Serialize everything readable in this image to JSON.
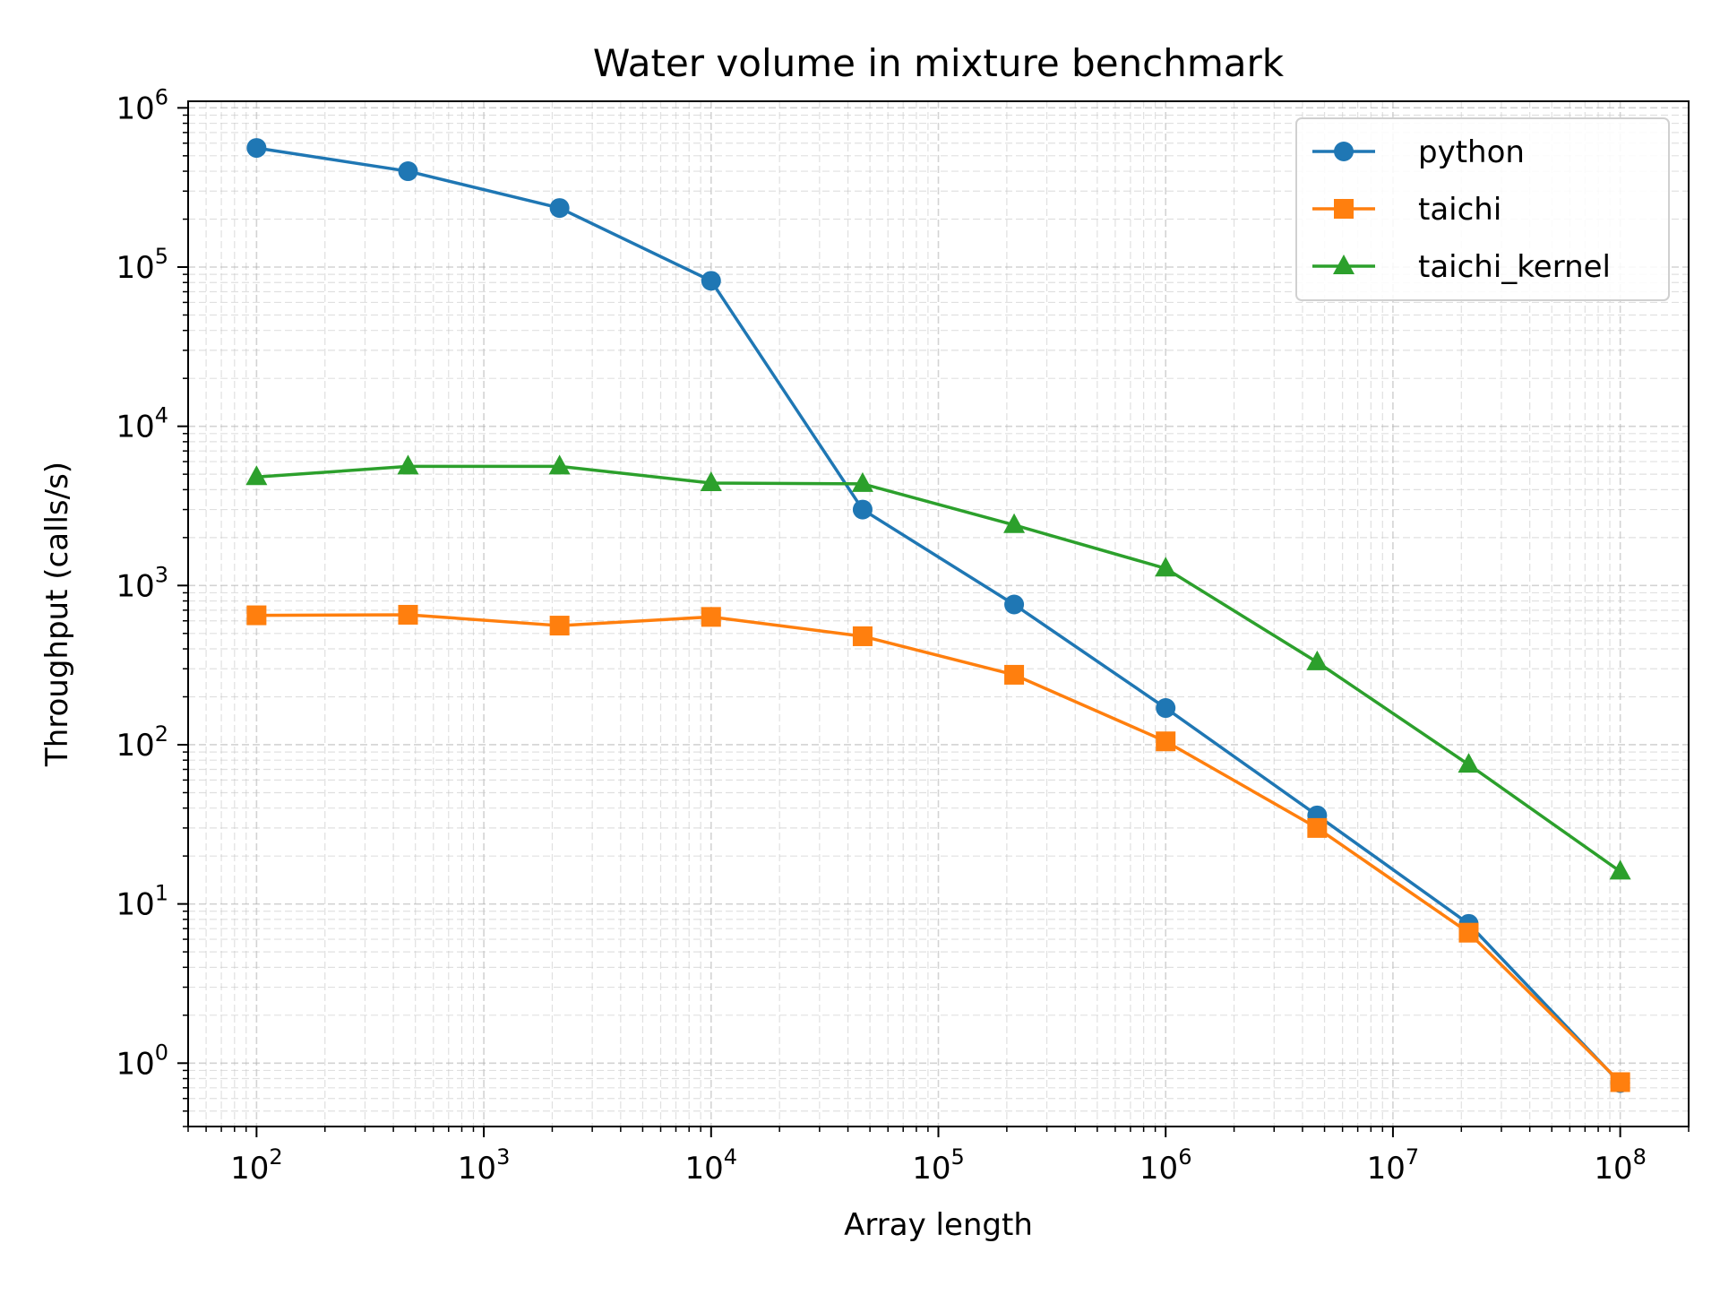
{
  "chart_data": {
    "type": "line",
    "title": "Water volume in mixture benchmark",
    "xlabel": "Array length",
    "ylabel": "Throughput (calls/s)",
    "x_scale": "log",
    "y_scale": "log",
    "xlim": [
      50,
      200000000
    ],
    "ylim": [
      0.4,
      1100000
    ],
    "grid": true,
    "legend_position": "top-right",
    "x": [
      100,
      464,
      2154,
      10000,
      46416,
      215443,
      1000000,
      4641589,
      21544347,
      100000000
    ],
    "series": [
      {
        "name": "python",
        "color": "#1f77b4",
        "marker": "circle",
        "values": [
          560000,
          400000,
          235000,
          82000,
          3000,
          760,
          170,
          36,
          7.5,
          0.75
        ]
      },
      {
        "name": "taichi",
        "color": "#ff7f0e",
        "marker": "square",
        "values": [
          650,
          655,
          560,
          635,
          480,
          275,
          105,
          30,
          6.6,
          0.76
        ]
      },
      {
        "name": "taichi_kernel",
        "color": "#2ca02c",
        "marker": "triangle",
        "values": [
          4800,
          5600,
          5600,
          4400,
          4350,
          2400,
          1280,
          330,
          75,
          16
        ]
      }
    ],
    "x_ticks": [
      {
        "base": "10",
        "exp": "2",
        "value": 100
      },
      {
        "base": "10",
        "exp": "3",
        "value": 1000
      },
      {
        "base": "10",
        "exp": "4",
        "value": 10000
      },
      {
        "base": "10",
        "exp": "5",
        "value": 100000
      },
      {
        "base": "10",
        "exp": "6",
        "value": 1000000
      },
      {
        "base": "10",
        "exp": "7",
        "value": 10000000
      },
      {
        "base": "10",
        "exp": "8",
        "value": 100000000
      }
    ],
    "y_ticks": [
      {
        "base": "10",
        "exp": "0",
        "value": 1
      },
      {
        "base": "10",
        "exp": "1",
        "value": 10
      },
      {
        "base": "10",
        "exp": "2",
        "value": 100
      },
      {
        "base": "10",
        "exp": "3",
        "value": 1000
      },
      {
        "base": "10",
        "exp": "4",
        "value": 10000
      },
      {
        "base": "10",
        "exp": "5",
        "value": 100000
      },
      {
        "base": "10",
        "exp": "6",
        "value": 1000000
      }
    ]
  }
}
